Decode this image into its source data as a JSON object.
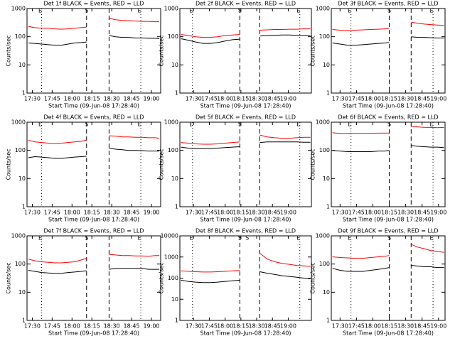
{
  "chart_data": [
    {
      "type": "line",
      "title": "Det 1f BLACK = Events, RED = LLD",
      "xlabel": "Start Time (09-Jun-08 17:28:40)",
      "ylabel": "Counts/sec",
      "log_y": true,
      "xlim": [
        "17:26",
        "19:07"
      ],
      "xticks": [
        "17:30",
        "17:45",
        "18:00",
        "18:15",
        "18:30",
        "18:45",
        "19:00"
      ],
      "ylim": [
        1,
        1000
      ],
      "yticks": [
        1,
        10,
        100,
        1000
      ],
      "markers": [
        {
          "label": "E",
          "x": "17:37",
          "style": "dotted"
        },
        {
          "label": "S",
          "x": "18:11",
          "style": "dashed"
        },
        {
          "x": "18:28",
          "style": "dashed"
        },
        {
          "label": "E",
          "x": "18:52",
          "style": "dotted"
        }
      ],
      "x": [
        "17:27",
        "17:32",
        "17:37",
        "17:42",
        "17:47",
        "17:52",
        "17:57",
        "18:02",
        "18:07",
        "18:11",
        "18:20",
        "18:28",
        "18:33",
        "18:38",
        "18:43",
        "18:48",
        "18:53",
        "18:58",
        "19:03",
        "19:06"
      ],
      "series": [
        {
          "color": "#ff0000",
          "values": [
            230,
            210,
            200,
            200,
            190,
            185,
            190,
            200,
            210,
            220,
            null,
            450,
            400,
            380,
            370,
            360,
            350,
            350,
            340,
            340
          ]
        },
        {
          "color": "#000000",
          "values": [
            60,
            58,
            55,
            52,
            50,
            50,
            55,
            60,
            62,
            65,
            null,
            110,
            100,
            95,
            95,
            90,
            90,
            88,
            88,
            85
          ]
        }
      ]
    },
    {
      "type": "line",
      "title": "Det 2f BLACK = Events, RED = LLD",
      "xlabel": "Start Time (09-Jun-08 17:28:40)",
      "ylabel": "Counts/sec",
      "log_y": true,
      "xlim": [
        "17:17",
        "19:22"
      ],
      "xticks": [
        "17:30",
        "17:45",
        "18:00",
        "18:15",
        "18:30",
        "18:45",
        "19:00"
      ],
      "ylim": [
        1,
        1000
      ],
      "yticks": [
        1,
        10,
        100,
        1000
      ],
      "markers": [
        {
          "label": "E",
          "x": "17:29",
          "style": "dotted"
        },
        {
          "label": "S",
          "x": "18:14",
          "style": "dashed"
        },
        {
          "x": "18:33",
          "style": "dashed"
        },
        {
          "label": "E",
          "x": "19:11",
          "style": "dotted"
        }
      ],
      "x": [
        "17:18",
        "17:25",
        "17:32",
        "17:39",
        "17:46",
        "17:53",
        "18:00",
        "18:07",
        "18:14",
        "18:24",
        "18:33",
        "18:40",
        "18:47",
        "18:54",
        "19:01",
        "19:08",
        "19:15",
        "19:21"
      ],
      "series": [
        {
          "color": "#ff0000",
          "values": [
            120,
            110,
            100,
            95,
            95,
            100,
            110,
            115,
            120,
            null,
            170,
            175,
            180,
            180,
            185,
            185,
            190,
            190
          ]
        },
        {
          "color": "#000000",
          "values": [
            85,
            75,
            65,
            58,
            58,
            62,
            70,
            78,
            82,
            null,
            105,
            110,
            112,
            115,
            115,
            112,
            110,
            110
          ]
        }
      ]
    },
    {
      "type": "line",
      "title": "Det 3f BLACK = Events, RED = LLD",
      "xlabel": "Start Time (09-Jun-08 17:28:40)",
      "ylabel": "Counts/sec",
      "log_y": true,
      "xlim": [
        "17:22",
        "19:06"
      ],
      "xticks": [
        "17:30",
        "17:45",
        "18:00",
        "18:15",
        "18:30",
        "18:45",
        "19:00"
      ],
      "ylim": [
        1,
        1000
      ],
      "yticks": [
        1,
        10,
        100,
        1000
      ],
      "markers": [
        {
          "label": "E",
          "x": "17:40",
          "style": "dotted"
        },
        {
          "label": "S",
          "x": "18:15",
          "style": "dashed"
        },
        {
          "x": "18:35",
          "style": "dashed"
        },
        {
          "label": "E",
          "x": "18:55",
          "style": "dotted"
        }
      ],
      "x": [
        "17:23",
        "17:30",
        "17:37",
        "17:44",
        "17:51",
        "17:58",
        "18:05",
        "18:11",
        "18:15",
        "18:25",
        "18:35",
        "18:41",
        "18:47",
        "18:53",
        "18:59",
        "19:05"
      ],
      "series": [
        {
          "color": "#ff0000",
          "values": [
            180,
            170,
            165,
            170,
            175,
            180,
            185,
            190,
            195,
            null,
            330,
            300,
            280,
            270,
            260,
            250
          ]
        },
        {
          "color": "#000000",
          "values": [
            60,
            55,
            50,
            50,
            52,
            55,
            58,
            60,
            62,
            null,
            100,
            95,
            95,
            92,
            90,
            90
          ]
        }
      ]
    },
    {
      "type": "line",
      "title": "Det 4f BLACK = Events, RED = LLD",
      "xlabel": "Start Time (09-Jun-08 17:28:40)",
      "ylabel": "Counts/sec",
      "log_y": true,
      "xlim": [
        "17:26",
        "19:07"
      ],
      "xticks": [
        "17:30",
        "17:45",
        "18:00",
        "18:15",
        "18:30",
        "18:45",
        "19:00"
      ],
      "ylim": [
        1,
        1000
      ],
      "yticks": [
        1,
        10,
        100,
        1000
      ],
      "markers": [
        {
          "label": "E",
          "x": "17:37",
          "style": "dotted"
        },
        {
          "label": "S",
          "x": "18:11",
          "style": "dashed"
        },
        {
          "x": "18:28",
          "style": "dashed"
        },
        {
          "label": "E",
          "x": "18:52",
          "style": "dotted"
        }
      ],
      "x": [
        "17:27",
        "17:32",
        "17:37",
        "17:42",
        "17:47",
        "17:52",
        "17:57",
        "18:02",
        "18:07",
        "18:11",
        "18:20",
        "18:28",
        "18:33",
        "18:38",
        "18:43",
        "18:48",
        "18:53",
        "18:58",
        "19:03",
        "19:06"
      ],
      "series": [
        {
          "color": "#ff0000",
          "values": [
            230,
            200,
            190,
            180,
            175,
            180,
            190,
            200,
            210,
            230,
            null,
            330,
            320,
            300,
            300,
            290,
            290,
            280,
            280,
            270
          ]
        },
        {
          "color": "#000000",
          "values": [
            55,
            60,
            58,
            55,
            52,
            52,
            55,
            58,
            60,
            62,
            null,
            120,
            110,
            105,
            100,
            100,
            98,
            95,
            95,
            95
          ]
        }
      ]
    },
    {
      "type": "line",
      "title": "Det 5f BLACK = Events, RED = LLD",
      "xlabel": "Start Time (09-Jun-08 17:28:40)",
      "ylabel": "Counts/sec",
      "log_y": true,
      "xlim": [
        "17:17",
        "19:22"
      ],
      "xticks": [
        "17:30",
        "17:45",
        "18:00",
        "18:15",
        "18:30",
        "18:45",
        "19:00"
      ],
      "ylim": [
        1,
        1000
      ],
      "yticks": [
        1,
        10,
        100,
        1000
      ],
      "markers": [
        {
          "label": "E",
          "x": "17:29",
          "style": "dotted"
        },
        {
          "label": "S",
          "x": "18:14",
          "style": "dashed"
        },
        {
          "x": "18:33",
          "style": "dashed"
        },
        {
          "label": "E",
          "x": "19:11",
          "style": "dotted"
        }
      ],
      "x": [
        "17:18",
        "17:25",
        "17:32",
        "17:39",
        "17:46",
        "17:53",
        "18:00",
        "18:07",
        "18:14",
        "18:24",
        "18:33",
        "18:40",
        "18:47",
        "18:54",
        "19:01",
        "19:08",
        "19:15",
        "19:21"
      ],
      "series": [
        {
          "color": "#ff0000",
          "values": [
            190,
            180,
            170,
            165,
            165,
            170,
            180,
            190,
            200,
            null,
            350,
            300,
            280,
            270,
            270,
            280,
            290,
            290
          ]
        },
        {
          "color": "#000000",
          "values": [
            130,
            120,
            115,
            115,
            115,
            120,
            125,
            130,
            135,
            null,
            190,
            200,
            200,
            200,
            200,
            200,
            195,
            195
          ]
        }
      ]
    },
    {
      "type": "line",
      "title": "Det 6f BLACK = Events, RED = LLD",
      "xlabel": "Start Time (09-Jun-08 17:28:40)",
      "ylabel": "Counts/sec",
      "log_y": true,
      "xlim": [
        "17:22",
        "19:06"
      ],
      "xticks": [
        "17:30",
        "17:45",
        "18:00",
        "18:15",
        "18:30",
        "18:45",
        "19:00"
      ],
      "ylim": [
        1,
        1000
      ],
      "yticks": [
        1,
        10,
        100,
        1000
      ],
      "markers": [
        {
          "label": "E",
          "x": "17:40",
          "style": "dotted"
        },
        {
          "label": "S",
          "x": "18:15",
          "style": "dashed"
        },
        {
          "x": "18:35",
          "style": "dashed"
        },
        {
          "label": "E",
          "x": "18:55",
          "style": "dotted"
        }
      ],
      "x": [
        "17:23",
        "17:30",
        "17:37",
        "17:44",
        "17:51",
        "17:58",
        "18:05",
        "18:11",
        "18:15",
        "18:25",
        "18:35",
        "18:41",
        "18:47",
        "18:53",
        "18:59",
        "19:05"
      ],
      "series": [
        {
          "color": "#ff0000",
          "values": [
            420,
            400,
            400,
            400,
            400,
            405,
            410,
            410,
            415,
            null,
            700,
            680,
            660,
            650,
            640,
            650
          ]
        },
        {
          "color": "#000000",
          "values": [
            100,
            95,
            90,
            90,
            90,
            90,
            95,
            95,
            100,
            null,
            150,
            140,
            135,
            130,
            130,
            125
          ]
        }
      ]
    },
    {
      "type": "line",
      "title": "Det 7f BLACK = Events, RED = LLD",
      "xlabel": "Start Time (09-Jun-08 17:28:40)",
      "ylabel": "Counts/sec",
      "log_y": true,
      "xlim": [
        "17:26",
        "19:07"
      ],
      "xticks": [
        "17:30",
        "17:45",
        "18:00",
        "18:15",
        "18:30",
        "18:45",
        "19:00"
      ],
      "ylim": [
        1,
        1000
      ],
      "yticks": [
        1,
        10,
        100,
        1000
      ],
      "markers": [
        {
          "label": "E",
          "x": "17:37",
          "style": "dotted"
        },
        {
          "label": "S",
          "x": "18:11",
          "style": "dashed"
        },
        {
          "x": "18:28",
          "style": "dashed"
        },
        {
          "label": "E",
          "x": "18:52",
          "style": "dotted"
        }
      ],
      "x": [
        "17:27",
        "17:32",
        "17:37",
        "17:42",
        "17:47",
        "17:52",
        "17:57",
        "18:02",
        "18:07",
        "18:11",
        "18:20",
        "18:28",
        "18:33",
        "18:38",
        "18:43",
        "18:48",
        "18:53",
        "18:58",
        "19:03",
        "19:06"
      ],
      "series": [
        {
          "color": "#ff0000",
          "values": [
            150,
            130,
            120,
            115,
            110,
            110,
            115,
            120,
            140,
            160,
            null,
            220,
            210,
            200,
            200,
            195,
            195,
            190,
            200,
            200
          ]
        },
        {
          "color": "#000000",
          "values": [
            60,
            55,
            50,
            48,
            47,
            47,
            50,
            52,
            55,
            58,
            null,
            65,
            70,
            70,
            70,
            70,
            70,
            65,
            65,
            65
          ]
        }
      ]
    },
    {
      "type": "line",
      "title": "Det 8f BLACK = Events, RED = LLD",
      "xlabel": "Start Time (09-Jun-08 17:28:40)",
      "ylabel": "Counts/sec",
      "log_y": true,
      "xlim": [
        "17:17",
        "19:22"
      ],
      "xticks": [
        "17:30",
        "17:45",
        "18:00",
        "18:15",
        "18:30",
        "18:45",
        "19:00"
      ],
      "ylim": [
        1,
        10000
      ],
      "yticks": [
        1,
        10,
        100,
        1000,
        10000
      ],
      "markers": [
        {
          "label": "E",
          "x": "17:29",
          "style": "dotted"
        },
        {
          "label": "S",
          "x": "18:14",
          "style": "dashed"
        },
        {
          "label": "S",
          "x": "18:21",
          "style": "none"
        },
        {
          "x": "18:33",
          "style": "dashed"
        },
        {
          "label": "E",
          "x": "19:11",
          "style": "dotted"
        }
      ],
      "x": [
        "17:18",
        "17:25",
        "17:32",
        "17:39",
        "17:46",
        "17:53",
        "18:00",
        "18:07",
        "18:14",
        "18:24",
        "18:33",
        "18:40",
        "18:47",
        "18:54",
        "19:01",
        "19:08",
        "19:15",
        "19:21"
      ],
      "series": [
        {
          "color": "#ff0000",
          "values": [
            220,
            210,
            200,
            195,
            195,
            200,
            210,
            220,
            230,
            null,
            1500,
            800,
            600,
            500,
            450,
            400,
            380,
            360
          ]
        },
        {
          "color": "#000000",
          "values": [
            80,
            70,
            65,
            62,
            62,
            65,
            70,
            75,
            80,
            null,
            200,
            170,
            150,
            130,
            120,
            110,
            100,
            95
          ]
        }
      ]
    },
    {
      "type": "line",
      "title": "Det 9f BLACK = Events, RED = LLD",
      "xlabel": "Start Time (09-Jun-08 17:28:40)",
      "ylabel": "Counts/sec",
      "log_y": true,
      "xlim": [
        "17:22",
        "19:06"
      ],
      "xticks": [
        "17:30",
        "17:45",
        "18:00",
        "18:15",
        "18:30",
        "18:45",
        "19:00"
      ],
      "ylim": [
        1,
        1000
      ],
      "yticks": [
        1,
        10,
        100,
        1000
      ],
      "markers": [
        {
          "label": "E",
          "x": "17:40",
          "style": "dotted"
        },
        {
          "label": "S",
          "x": "18:15",
          "style": "dashed"
        },
        {
          "x": "18:35",
          "style": "dashed"
        },
        {
          "label": "E",
          "x": "18:55",
          "style": "dotted"
        }
      ],
      "x": [
        "17:23",
        "17:30",
        "17:37",
        "17:44",
        "17:51",
        "17:58",
        "18:05",
        "18:11",
        "18:15",
        "18:25",
        "18:35",
        "18:41",
        "18:47",
        "18:53",
        "18:59",
        "19:05"
      ],
      "series": [
        {
          "color": "#ff0000",
          "values": [
            180,
            170,
            165,
            160,
            160,
            170,
            180,
            190,
            200,
            null,
            500,
            400,
            350,
            300,
            280,
            260
          ]
        },
        {
          "color": "#000000",
          "values": [
            70,
            60,
            55,
            55,
            55,
            60,
            65,
            70,
            75,
            null,
            90,
            85,
            80,
            80,
            75,
            75
          ]
        }
      ]
    }
  ]
}
